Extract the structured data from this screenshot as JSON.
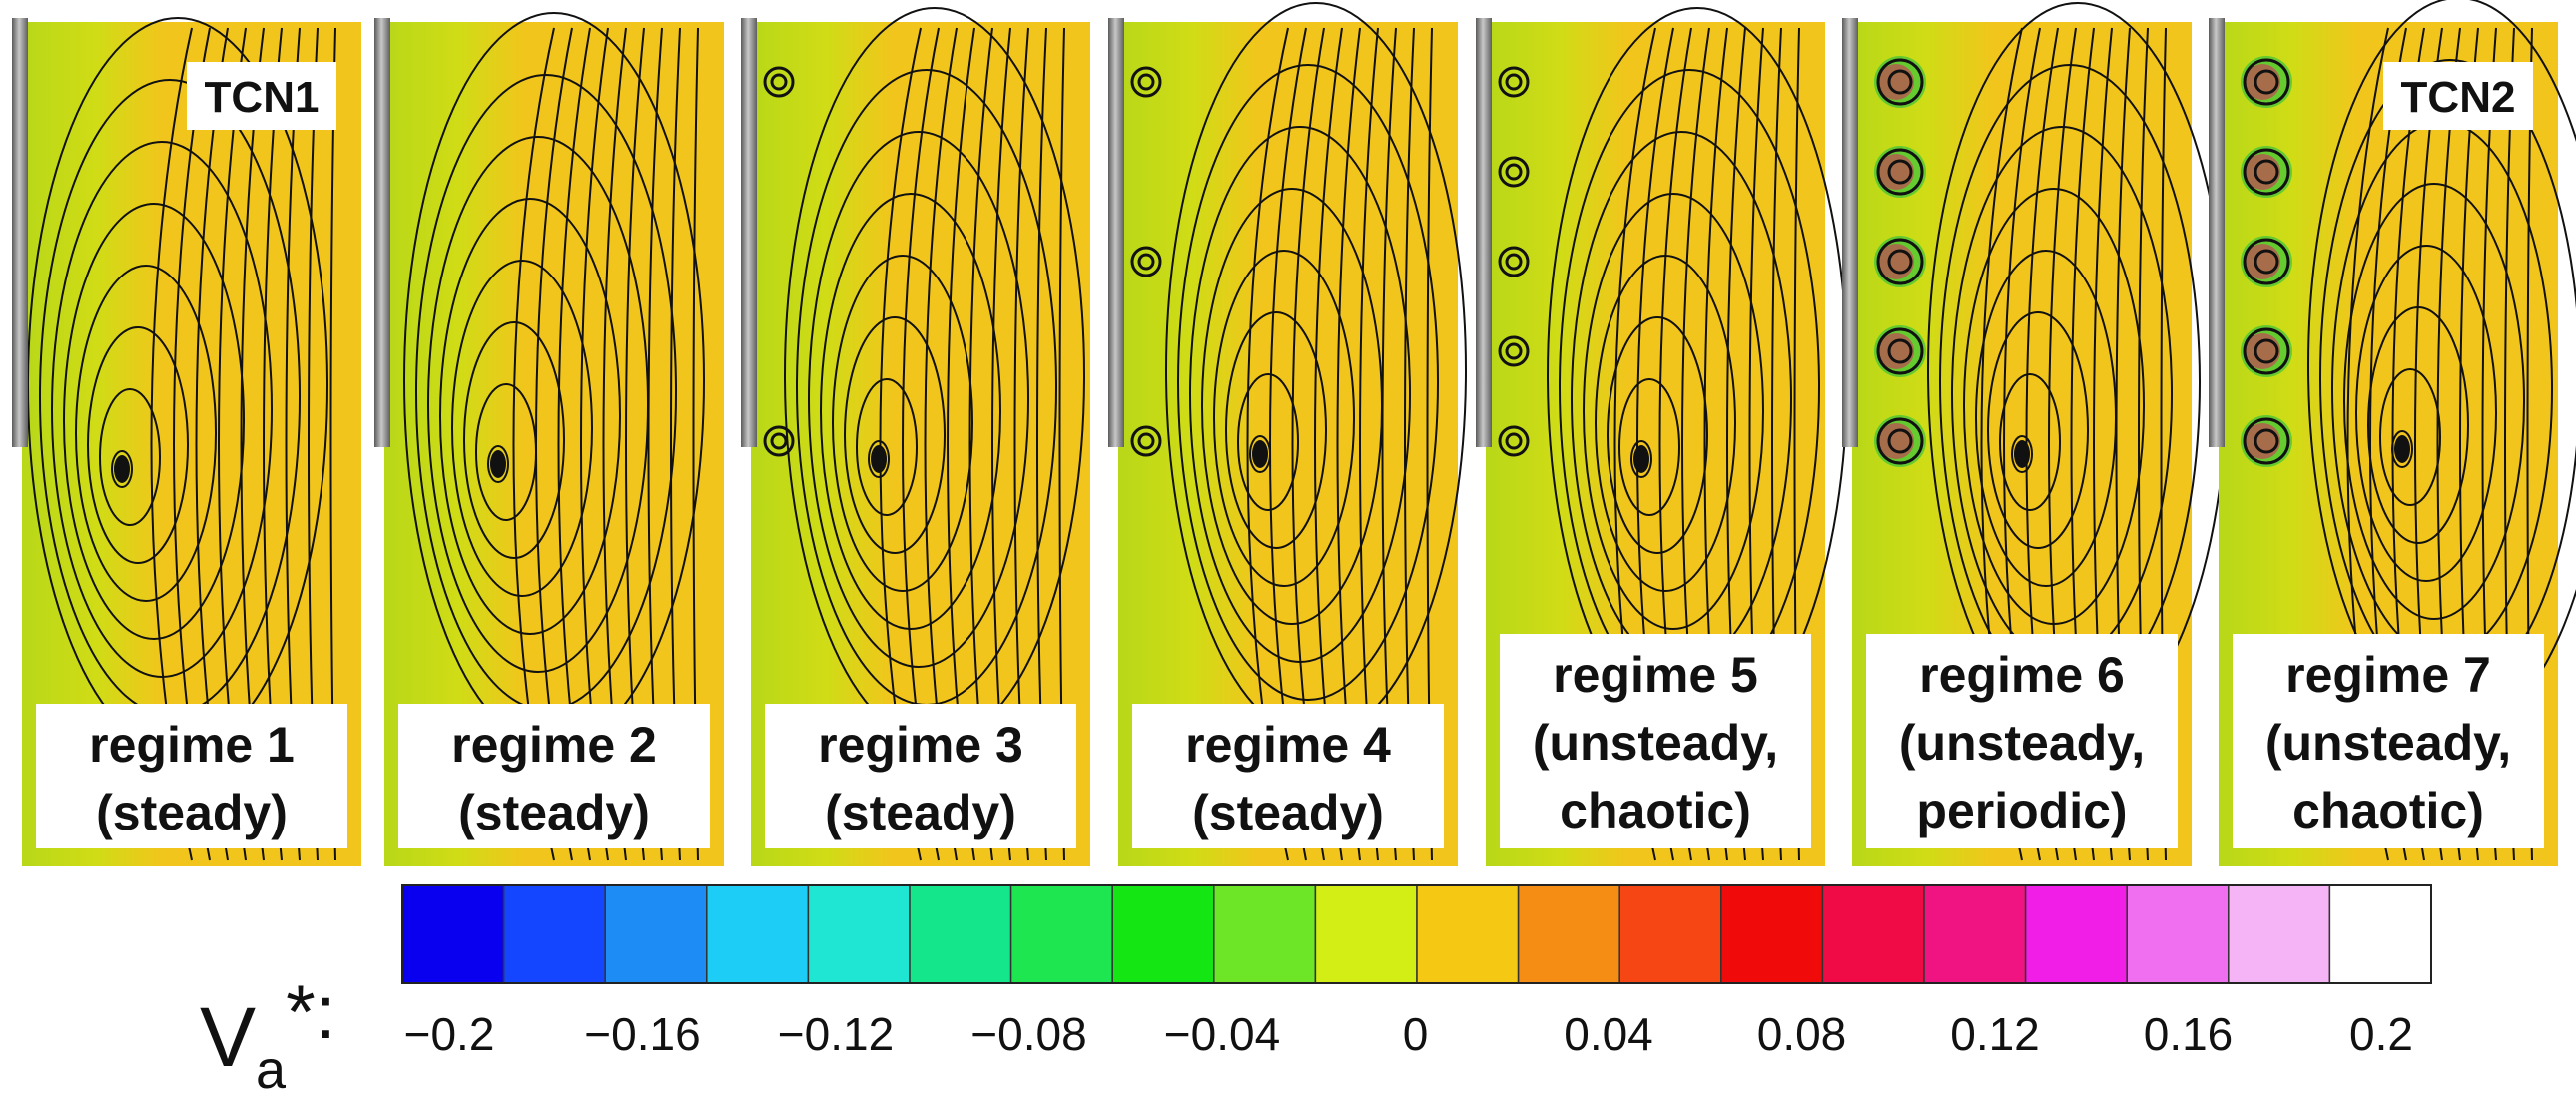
{
  "panels": [
    {
      "id": "regime-1",
      "label_lines": [
        "regime 1",
        "(steady)"
      ],
      "corner_label": "TCN1",
      "secondary_vortices": 0,
      "flow": "steady"
    },
    {
      "id": "regime-2",
      "label_lines": [
        "regime 2",
        "(steady)"
      ],
      "corner_label": "",
      "secondary_vortices": 0,
      "flow": "steady"
    },
    {
      "id": "regime-3",
      "label_lines": [
        "regime 3",
        "(steady)"
      ],
      "corner_label": "",
      "secondary_vortices": 2,
      "flow": "steady"
    },
    {
      "id": "regime-4",
      "label_lines": [
        "regime 4",
        "(steady)"
      ],
      "corner_label": "",
      "secondary_vortices": 3,
      "flow": "steady"
    },
    {
      "id": "regime-5",
      "label_lines": [
        "regime 5",
        "(unsteady,",
        "chaotic)"
      ],
      "corner_label": "",
      "secondary_vortices": 5,
      "flow": "unsteady"
    },
    {
      "id": "regime-6",
      "label_lines": [
        "regime 6",
        "(unsteady,",
        "periodic)"
      ],
      "corner_label": "",
      "secondary_vortices": 5,
      "flow": "unsteady"
    },
    {
      "id": "regime-7",
      "label_lines": [
        "regime 7",
        "(unsteady,",
        "chaotic)"
      ],
      "corner_label": "TCN2",
      "secondary_vortices": 5,
      "flow": "unsteady"
    }
  ],
  "colorbar": {
    "label_main": "V",
    "label_sub": "a",
    "label_sup": "*:",
    "ticks": [
      "−0.2",
      "−0.16",
      "−0.12",
      "−0.08",
      "−0.04",
      "0",
      "0.04",
      "0.08",
      "0.12",
      "0.16",
      "0.2"
    ],
    "colors": [
      "#0a00f0",
      "#1446ff",
      "#1e8cf5",
      "#1ecdf5",
      "#1ee6d2",
      "#14e68c",
      "#1ee650",
      "#14e614",
      "#6ee628",
      "#d2ee14",
      "#f5c814",
      "#f58c14",
      "#f54614",
      "#f00a0a",
      "#f00a46",
      "#f01482",
      "#f01ee6",
      "#f06ef0",
      "#f5b4f5",
      "#ffffff"
    ]
  },
  "colors": {
    "field_base": "#f2c51c",
    "field_green": "#c8dc19",
    "streamline": "#111111",
    "cylinder": "#7a7a7a"
  }
}
